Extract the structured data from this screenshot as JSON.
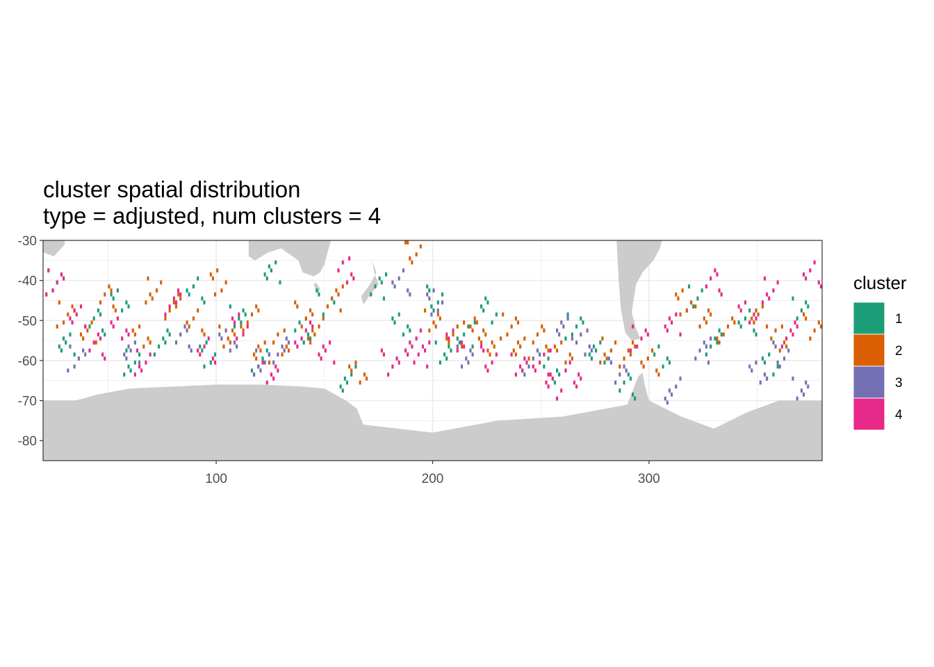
{
  "chart_data": {
    "type": "heatmap",
    "title": "cluster spatial distribution",
    "subtitle": "type = adjusted, num clusters = 4",
    "xlabel": "",
    "ylabel": "",
    "xlim": [
      20,
      380
    ],
    "ylim": [
      -85,
      -30
    ],
    "x_ticks": [
      100,
      200,
      300
    ],
    "y_ticks": [
      -30,
      -40,
      -50,
      -60,
      -70,
      -80
    ],
    "grid": true,
    "legend": {
      "title": "cluster",
      "placement": "right",
      "items": [
        {
          "label": "1",
          "color": "#1B9E77"
        },
        {
          "label": "2",
          "color": "#D95F02"
        },
        {
          "label": "3",
          "color": "#7570B3"
        },
        {
          "label": "4",
          "color": "#E7298A"
        }
      ]
    },
    "land_color": "#cccccc",
    "cell_size_deg": 1,
    "description_of_pattern": "Scattered 1x1 degree cells of clusters 1-4 across the Southern Ocean, concentrated between -35 and -65 latitude; grey landmass (Antarctica) along the bottom, South America tip near 290-300, Australia/New Zealand near 115-175.",
    "clusters": [
      {
        "cluster": 1,
        "x": [
          25,
          30,
          45,
          55,
          60,
          75,
          90,
          95,
          110,
          120,
          125,
          140,
          150,
          160,
          175,
          185,
          200,
          205,
          215,
          225,
          255,
          265,
          275,
          290,
          305,
          320,
          330,
          345,
          355,
          370
        ],
        "y": [
          -40,
          -55,
          -50,
          -45,
          -60,
          -55,
          -42,
          -58,
          -48,
          -60,
          -38,
          -52,
          -45,
          -64,
          -41,
          -50,
          -44,
          -58,
          -53,
          -47,
          -62,
          -51,
          -57,
          -66,
          -59,
          -44,
          -55,
          -50,
          -61,
          -46
        ]
      },
      {
        "cluster": 2,
        "x": [
          30,
          40,
          50,
          65,
          70,
          80,
          90,
          100,
          105,
          115,
          120,
          130,
          140,
          145,
          155,
          165,
          190,
          200,
          210,
          220,
          225,
          235,
          240,
          250,
          260,
          280,
          290,
          300,
          315,
          325,
          335,
          350,
          360,
          375
        ],
        "y": [
          -48,
          -52,
          -44,
          -54,
          -42,
          -46,
          -50,
          -40,
          -53,
          -49,
          -58,
          -55,
          -48,
          -52,
          -44,
          -62,
          -32,
          -50,
          -53,
          -52,
          -55,
          -51,
          -56,
          -54,
          -58,
          -57,
          -58,
          -60,
          -45,
          -48,
          -52,
          -49,
          -54,
          -51
        ]
      },
      {
        "cluster": 3,
        "x": [
          35,
          60,
          85,
          105,
          120,
          130,
          185,
          200,
          215,
          245,
          260,
          270,
          285,
          310,
          325,
          350,
          360,
          370
        ],
        "y": [
          -59,
          -57,
          -54,
          -55,
          -60,
          -57,
          -40,
          -45,
          -58,
          -60,
          -52,
          -55,
          -62,
          -67,
          -57,
          -62,
          -58,
          -67
        ]
      },
      {
        "cluster": 4,
        "x": [
          25,
          35,
          45,
          55,
          65,
          80,
          95,
          110,
          125,
          140,
          150,
          160,
          180,
          190,
          195,
          210,
          225,
          240,
          250,
          255,
          265,
          295,
          310,
          330,
          345,
          355,
          365,
          375
        ],
        "y": [
          -40,
          -48,
          -56,
          -52,
          -60,
          -45,
          -57,
          -51,
          -62,
          -53,
          -58,
          -37,
          -60,
          -55,
          -58,
          -54,
          -59,
          -61,
          -60,
          -66,
          -63,
          -54,
          -50,
          -40,
          -48,
          -42,
          -53,
          -38
        ]
      }
    ]
  }
}
